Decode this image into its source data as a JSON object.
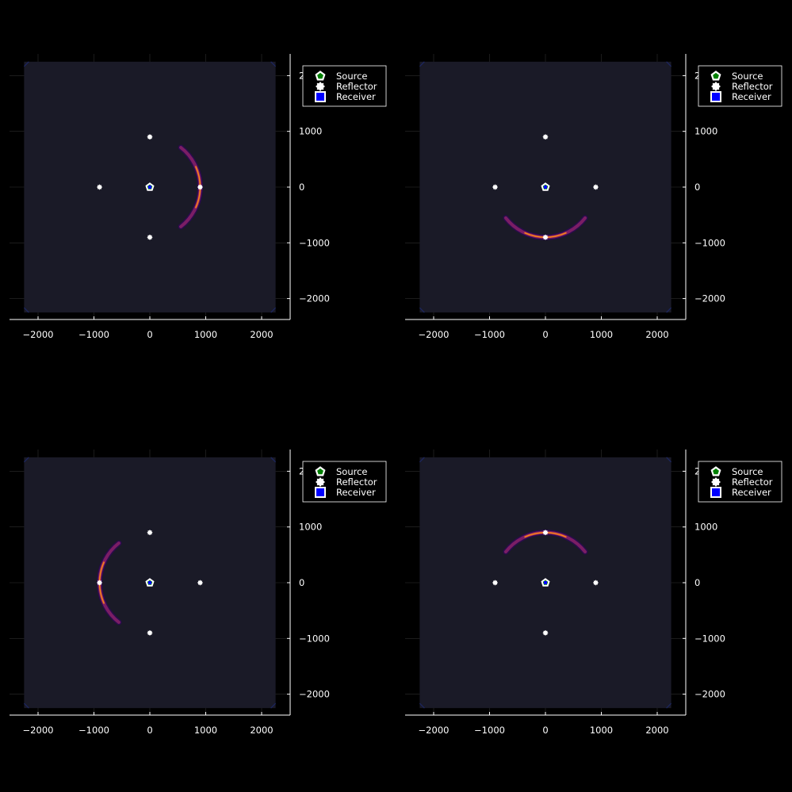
{
  "figure": {
    "background": "#000000"
  },
  "colors": {
    "plot_background": "#1a1a27",
    "axis": "#ffffff",
    "grid": "#2e2e2e",
    "source": "#008000",
    "reflector": "#ffffff",
    "receiver": "#0000ff",
    "marker_stroke": "#ffffff",
    "wavefront": [
      "#2b0b4f",
      "#8a226a",
      "#e35932",
      "#fca50a"
    ]
  },
  "legend_position": "top-right-outside",
  "chart_data": [
    {
      "type": "heatmap",
      "panel": "top-left",
      "xlim": [
        -2500,
        2500
      ],
      "ylim": [
        -2350,
        2350
      ],
      "xticks": [
        -2000,
        -1000,
        0,
        1000,
        2000
      ],
      "yticks": [
        -2000,
        -1000,
        0,
        1000,
        2000
      ],
      "xtick_labels": [
        "−2000",
        "−1000",
        "0",
        "1000",
        "2000"
      ],
      "ytick_labels": [
        "−2000",
        "−1000",
        "0",
        "1000",
        "2000"
      ],
      "grid": true,
      "field_extent": [
        -2250,
        2250,
        -2250,
        2250
      ],
      "wavefront": {
        "center": [
          0,
          0
        ],
        "radius": 900,
        "direction": "right"
      },
      "source": [
        0,
        0
      ],
      "receiver": [
        0,
        0
      ],
      "reflectors": [
        [
          0,
          900
        ],
        [
          -900,
          0
        ],
        [
          900,
          0
        ],
        [
          0,
          -900
        ]
      ],
      "legend": [
        "Source",
        "Reflector",
        "Receiver"
      ]
    },
    {
      "type": "heatmap",
      "panel": "top-right",
      "xlim": [
        -2500,
        2500
      ],
      "ylim": [
        -2350,
        2350
      ],
      "xticks": [
        -2000,
        -1000,
        0,
        1000,
        2000
      ],
      "yticks": [
        -2000,
        -1000,
        0,
        1000,
        2000
      ],
      "xtick_labels": [
        "−2000",
        "−1000",
        "0",
        "1000",
        "2000"
      ],
      "ytick_labels": [
        "−2000",
        "−1000",
        "0",
        "1000",
        "2000"
      ],
      "grid": true,
      "field_extent": [
        -2250,
        2250,
        -2250,
        2250
      ],
      "wavefront": {
        "center": [
          0,
          0
        ],
        "radius": 900,
        "direction": "down"
      },
      "source": [
        0,
        0
      ],
      "receiver": [
        0,
        0
      ],
      "reflectors": [
        [
          0,
          900
        ],
        [
          -900,
          0
        ],
        [
          900,
          0
        ],
        [
          0,
          -900
        ]
      ],
      "legend": [
        "Source",
        "Reflector",
        "Receiver"
      ]
    },
    {
      "type": "heatmap",
      "panel": "bottom-left",
      "xlim": [
        -2500,
        2500
      ],
      "ylim": [
        -2350,
        2350
      ],
      "xticks": [
        -2000,
        -1000,
        0,
        1000,
        2000
      ],
      "yticks": [
        -2000,
        -1000,
        0,
        1000,
        2000
      ],
      "xtick_labels": [
        "−2000",
        "−1000",
        "0",
        "1000",
        "2000"
      ],
      "ytick_labels": [
        "−2000",
        "−1000",
        "0",
        "1000",
        "2000"
      ],
      "grid": true,
      "field_extent": [
        -2250,
        2250,
        -2250,
        2250
      ],
      "wavefront": {
        "center": [
          0,
          0
        ],
        "radius": 900,
        "direction": "left"
      },
      "source": [
        0,
        0
      ],
      "receiver": [
        0,
        0
      ],
      "reflectors": [
        [
          0,
          900
        ],
        [
          -900,
          0
        ],
        [
          900,
          0
        ],
        [
          0,
          -900
        ]
      ],
      "legend": [
        "Source",
        "Reflector",
        "Receiver"
      ]
    },
    {
      "type": "heatmap",
      "panel": "bottom-right",
      "xlim": [
        -2500,
        2500
      ],
      "ylim": [
        -2350,
        2350
      ],
      "xticks": [
        -2000,
        -1000,
        0,
        1000,
        2000
      ],
      "yticks": [
        -2000,
        -1000,
        0,
        1000,
        2000
      ],
      "xtick_labels": [
        "−2000",
        "−1000",
        "0",
        "1000",
        "2000"
      ],
      "ytick_labels": [
        "−2000",
        "−1000",
        "0",
        "1000",
        "2000"
      ],
      "grid": true,
      "field_extent": [
        -2250,
        2250,
        -2250,
        2250
      ],
      "wavefront": {
        "center": [
          0,
          0
        ],
        "radius": 900,
        "direction": "up"
      },
      "source": [
        0,
        0
      ],
      "receiver": [
        0,
        0
      ],
      "reflectors": [
        [
          0,
          900
        ],
        [
          -900,
          0
        ],
        [
          900,
          0
        ],
        [
          0,
          -900
        ]
      ],
      "legend": [
        "Source",
        "Reflector",
        "Receiver"
      ]
    }
  ]
}
